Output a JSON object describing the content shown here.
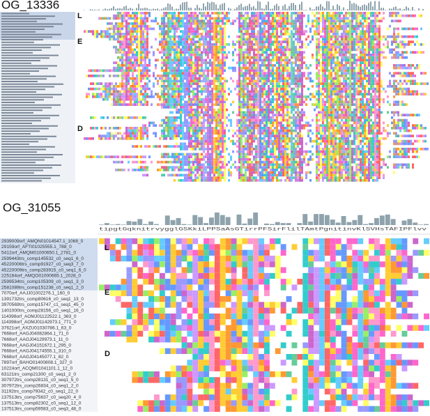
{
  "panels": [
    {
      "title": "OG_13336",
      "groups": [
        "L",
        "E",
        "D"
      ]
    },
    {
      "title": "OG_31055",
      "groups": [
        "L",
        "E",
        "D"
      ],
      "consensus": "tipgtGqknitrvygglGSKkiLPPSaAsGTirrPFSirFlilTAmtPgnitinvKlSVHsTAFIPFlvv",
      "sequences": [
        "2939009orf_AMQN01014547.1_1068_0",
        "29159orf_AFTI01025555.1_788_0",
        "5412orf_AMQM01000650.1_2781_0",
        "2599443trs_comp145532_c0_seq1_6_0",
        "45220006trs_comp91927_c0_seq3_7_0",
        "45220009trs_comp283915_c0_seq1_6_0",
        "225164orf_AMQO01000665.1_2028_0",
        "2599534trs_comp105309_c0_seq1_3_0",
        "2581089trs_comp151238_c0_seq1_2_0",
        "7070orf_AAJJ01002276.1_160_0",
        "1391732trs_comp80616_c0_seq1_13_0",
        "3970569trs_comp15747_c1_seq1_45_0",
        "1401000trs_comp28156_c0_seq1_16_0",
        "114398orf_AOMJ01122522.1_363_0",
        "114398orf_AOMJ01142973.1_771_0",
        "37621orf_AXZU01030786.1_63_0",
        "7668orf_AAGJ04082864.1_71_0",
        "7668orf_AAGJ04129973.1_11_0",
        "7668orf_AAGJ04151672.1_295_0",
        "7668orf_AAGJ04174555.1_310_0",
        "7668orf_AAGJ04145077.1_82_0",
        "7897orf_BAHO01400808.1_327_0",
        "10224orf_ACQM01041101.1_12_0",
        "63121trs_comp21300_c0_seq1_2_0",
        "307972trs_comp28131_c0_seq1_5_0",
        "307972trs_comp26834_c0_seq1_2_0",
        "31192trs_comp79342_c0_seq1_22_0",
        "137513trs_comp75637_c0_seq20_4_0",
        "137513trs_comp82302_c0_seq1_12_0",
        "137513trs_comp59583_c0_seq3_48_0"
      ]
    }
  ]
}
